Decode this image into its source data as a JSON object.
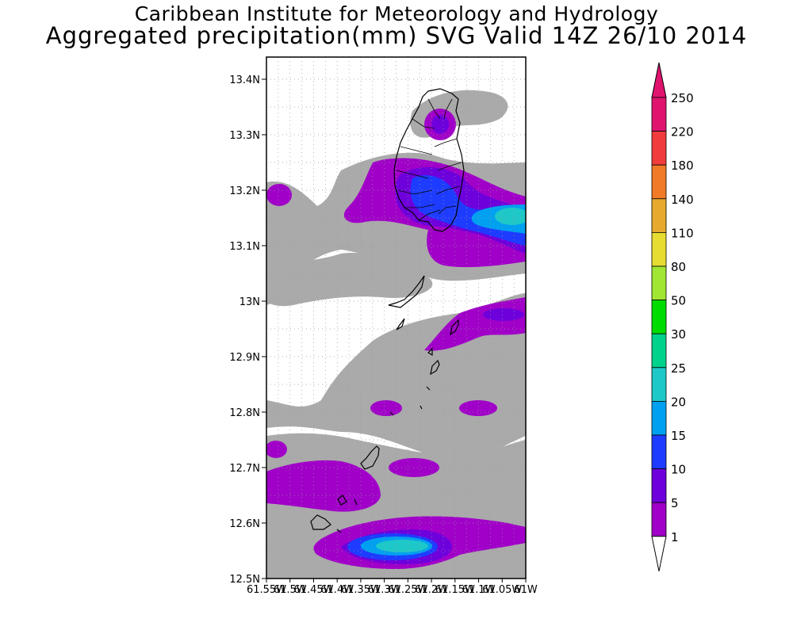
{
  "title": {
    "line1": "Caribbean Institute for Meteorology and Hydrology",
    "line2": "Aggregated precipitation(mm) SVG Valid 14Z 26/10 2014"
  },
  "map": {
    "lat_labels": [
      "13.4N",
      "13.3N",
      "13.2N",
      "13.1N",
      "13N",
      "12.9N",
      "12.8N",
      "12.7N",
      "12.6N",
      "12.5N"
    ],
    "lon_labels": [
      "61.55W",
      "61.5W",
      "61.45W",
      "61.4W",
      "61.35W",
      "61.3W",
      "61.25W",
      "61.2W",
      "61.15W",
      "61.1W",
      "61.05W",
      "61W"
    ],
    "lat_range": [
      12.5,
      13.44
    ],
    "lon_range": [
      -61.55,
      -61.0
    ]
  },
  "colorbar": {
    "labels": [
      "250",
      "220",
      "180",
      "140",
      "110",
      "80",
      "50",
      "30",
      "25",
      "20",
      "15",
      "10",
      "5",
      "1"
    ],
    "colors": [
      "#e0146e",
      "#f03c3c",
      "#f07a28",
      "#e6aa2e",
      "#e6dc32",
      "#a0e632",
      "#00dc00",
      "#00d28c",
      "#1ec8c8",
      "#00a0f0",
      "#1e3cff",
      "#6e00dc",
      "#a000c8",
      "#aaaaaa"
    ],
    "top_arrow_color": "#e0146e",
    "bottom_arrow_color": "#ffffff"
  },
  "colors": {
    "gray": "#aaaaaa",
    "purple": "#a000c8",
    "violet": "#6e00dc",
    "blue": "#1e3cff",
    "lightblue": "#00a0f0",
    "cyan": "#1ec8c8",
    "coast": "#000000"
  }
}
